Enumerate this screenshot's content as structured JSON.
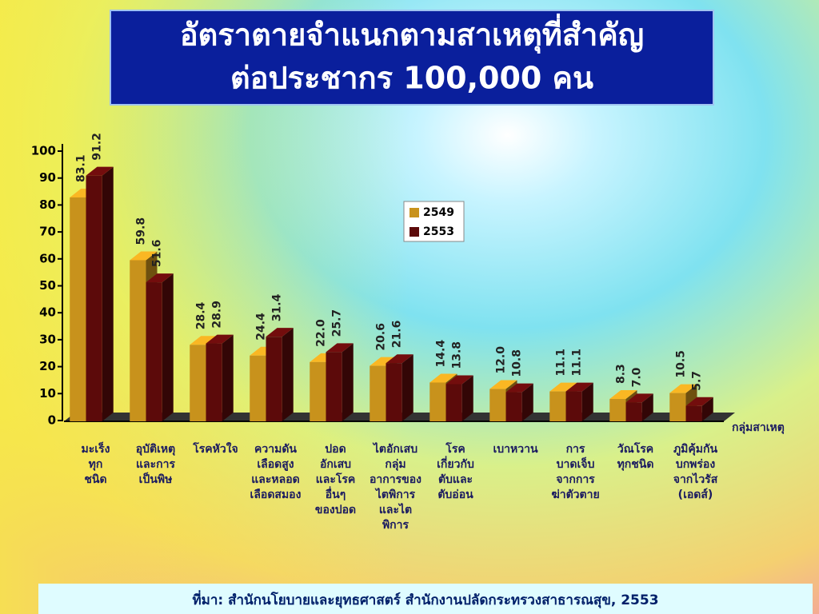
{
  "chart_data": {
    "type": "bar3d",
    "title": [
      "อัตราตายจำแนกตามสาเหตุที่สำคัญ",
      "ต่อประชากร 100,000 คน"
    ],
    "x_label": "กลุ่มสาเหตุ",
    "source": "ที่มา: สำนักนโยบายและยุทธศาสตร์ สำนักงานปลัดกระทรวงสาธารณสุข, 2553",
    "categories": [
      [
        "มะเร็ง",
        "ทุก",
        "ชนิด"
      ],
      [
        "อุบัติเหตุ",
        "และการ",
        "เป็นพิษ"
      ],
      [
        "โรคหัวใจ"
      ],
      [
        "ความดัน",
        "เลือดสูง",
        "และหลอด",
        "เลือดสมอง"
      ],
      [
        "ปอด",
        "อักเสบ",
        "และโรค",
        "อื่นๆ",
        "ของปอด"
      ],
      [
        "ไตอักเสบ",
        "กลุ่ม",
        "อาการของ",
        "ไตพิการ",
        "และไต",
        "พิการ"
      ],
      [
        "โรค",
        "เกี่ยวกับ",
        "ตับและ",
        "ตับอ่อน"
      ],
      [
        "เบาหวาน"
      ],
      [
        "การ",
        "บาดเจ็บ",
        "จากการ",
        "ฆ่าตัวตาย"
      ],
      [
        "วัณโรค",
        "ทุกชนิด"
      ],
      [
        "ภูมิคุ้มกัน",
        "บกพร่อง",
        "จากไวรัส",
        "(เอดส์)"
      ]
    ],
    "series": [
      {
        "name": "2549",
        "color": "#c8921c",
        "values": [
          83.1,
          59.8,
          28.4,
          24.4,
          22.0,
          20.6,
          14.4,
          12.0,
          11.1,
          8.3,
          10.5
        ],
        "value_labels": [
          "83.1",
          "59.8",
          "28.4",
          "24.4",
          "22.0",
          "20.6",
          "14.4",
          "12.0",
          "11.1",
          "8.3",
          "10.5"
        ]
      },
      {
        "name": "2553",
        "color": "#5c0a0a",
        "values": [
          91.2,
          51.6,
          28.9,
          31.4,
          25.7,
          21.6,
          13.8,
          10.8,
          11.1,
          7.0,
          5.7
        ],
        "value_labels": [
          "91.2",
          "51.6",
          "28.9",
          "31.4",
          "25.7",
          "21.6",
          "13.8",
          "10.8",
          "11.1",
          "7.0",
          "5.7"
        ]
      }
    ],
    "ylim": [
      0,
      100
    ],
    "yticks": [
      0,
      10,
      20,
      30,
      40,
      50,
      60,
      70,
      80,
      90,
      100
    ]
  }
}
